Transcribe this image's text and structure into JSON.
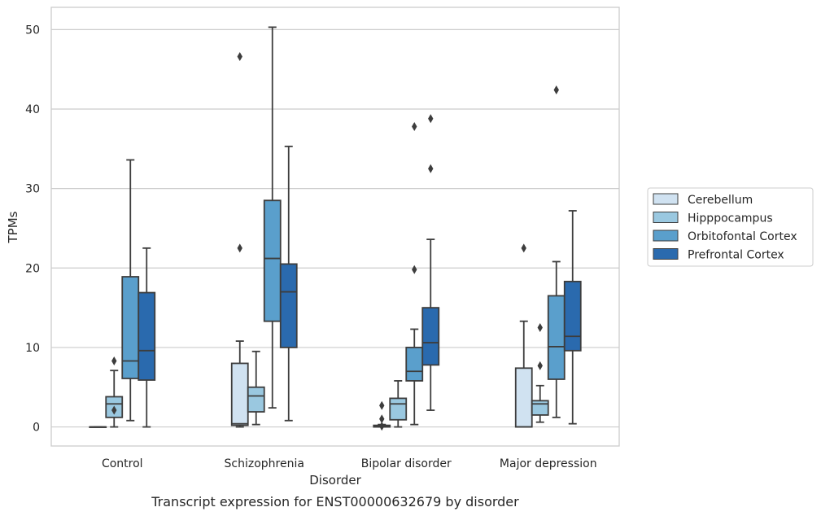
{
  "chart_data": {
    "type": "box",
    "caption": "Transcript expression for ENST00000632679 by disorder",
    "xlabel": "Disorder",
    "ylabel": "TPMs",
    "ylim": [
      -2.4,
      52.8
    ],
    "yticks": [
      0,
      10,
      20,
      30,
      40,
      50
    ],
    "grid": "horizontal",
    "legend_position": "right",
    "categories": [
      "Control",
      "Schizophrenia",
      "Bipolar disorder",
      "Major depression"
    ],
    "series": [
      {
        "name": "Cerebellum",
        "color": "#d0e2f1",
        "boxes": [
          {
            "whislo": 0.0,
            "q1": 0.0,
            "med": 0.0,
            "q3": 0.0,
            "whishi": 0.0,
            "fliers": []
          },
          {
            "whislo": 0.0,
            "q1": 0.2,
            "med": 0.4,
            "q3": 8.0,
            "whishi": 10.8,
            "fliers": [
              22.5,
              46.6
            ]
          },
          {
            "whislo": 0.0,
            "q1": 0.0,
            "med": 0.1,
            "q3": 0.2,
            "whishi": 0.3,
            "fliers": [
              0.1,
              1.0,
              2.7
            ]
          },
          {
            "whislo": 0.0,
            "q1": 0.0,
            "med": 0.0,
            "q3": 7.4,
            "whishi": 13.3,
            "fliers": [
              22.5
            ]
          }
        ]
      },
      {
        "name": "Hipppocampus",
        "color": "#9ac8e0",
        "boxes": [
          {
            "whislo": 0.0,
            "q1": 1.2,
            "med": 2.9,
            "q3": 3.8,
            "whishi": 7.1,
            "fliers": [
              2.1,
              8.3
            ]
          },
          {
            "whislo": 0.3,
            "q1": 1.9,
            "med": 3.9,
            "q3": 5.0,
            "whishi": 9.5,
            "fliers": []
          },
          {
            "whislo": 0.0,
            "q1": 0.9,
            "med": 2.9,
            "q3": 3.6,
            "whishi": 5.8,
            "fliers": []
          },
          {
            "whislo": 0.6,
            "q1": 1.5,
            "med": 2.9,
            "q3": 3.3,
            "whishi": 5.2,
            "fliers": [
              7.7,
              12.5
            ]
          }
        ]
      },
      {
        "name": "Orbitofontal Cortex",
        "color": "#5a9fcc",
        "boxes": [
          {
            "whislo": 0.8,
            "q1": 6.1,
            "med": 8.3,
            "q3": 18.9,
            "whishi": 33.6,
            "fliers": []
          },
          {
            "whislo": 2.4,
            "q1": 13.3,
            "med": 21.2,
            "q3": 28.5,
            "whishi": 50.3,
            "fliers": []
          },
          {
            "whislo": 0.3,
            "q1": 5.8,
            "med": 7.0,
            "q3": 10.0,
            "whishi": 12.3,
            "fliers": [
              19.8,
              37.8
            ]
          },
          {
            "whislo": 1.2,
            "q1": 6.0,
            "med": 10.1,
            "q3": 16.5,
            "whishi": 20.8,
            "fliers": [
              42.4
            ]
          }
        ]
      },
      {
        "name": "Prefrontal Cortex",
        "color": "#2a6aae",
        "boxes": [
          {
            "whislo": 0.0,
            "q1": 5.9,
            "med": 9.6,
            "q3": 16.9,
            "whishi": 22.5,
            "fliers": []
          },
          {
            "whislo": 0.8,
            "q1": 10.0,
            "med": 17.0,
            "q3": 20.5,
            "whishi": 35.3,
            "fliers": []
          },
          {
            "whislo": 2.1,
            "q1": 7.8,
            "med": 10.6,
            "q3": 15.0,
            "whishi": 23.6,
            "fliers": [
              32.5,
              38.8
            ]
          },
          {
            "whislo": 0.4,
            "q1": 9.6,
            "med": 11.4,
            "q3": 18.3,
            "whishi": 27.2,
            "fliers": []
          }
        ]
      }
    ]
  }
}
